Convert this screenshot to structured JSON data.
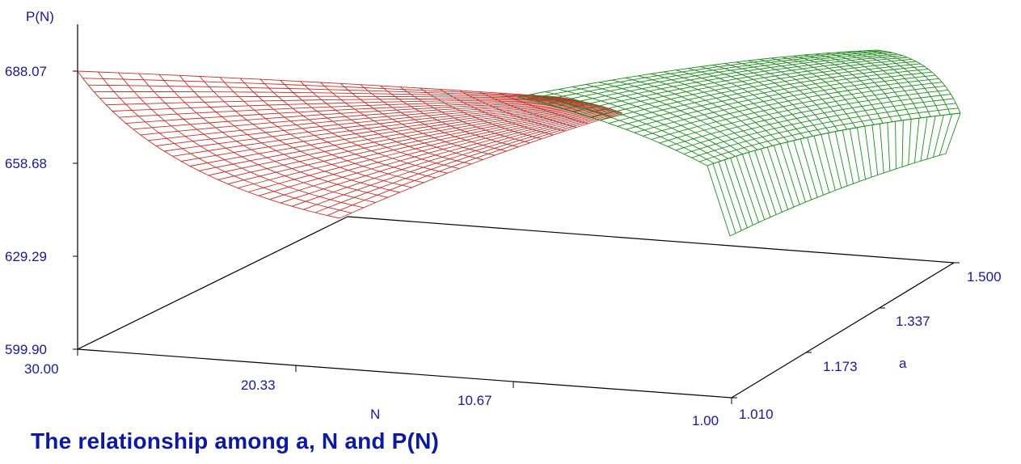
{
  "chart_data": {
    "type": "surface3d",
    "title": "The relationship among a, N and P(N)",
    "zlabel": "P(N)",
    "xlabel": "N",
    "ylabel": "a",
    "z_ticks": [
      "688.07",
      "658.68",
      "629.29",
      "599.90"
    ],
    "n_ticks": [
      "30.00",
      "20.33",
      "10.67",
      "1.00"
    ],
    "a_ticks": [
      "1.010",
      "1.173",
      "1.337",
      "1.500"
    ],
    "zlim": [
      599.9,
      688.07
    ],
    "nlim": [
      30.0,
      1.0
    ],
    "alim": [
      1.01,
      1.5
    ],
    "series": [
      {
        "color": "#c0302a"
      },
      {
        "color": "#1e8a1e"
      }
    ]
  }
}
